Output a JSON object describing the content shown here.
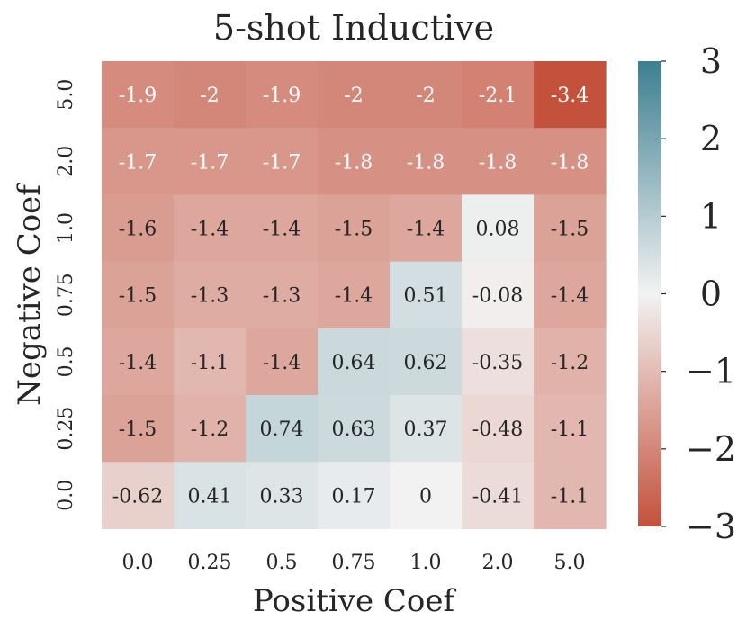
{
  "chart_data": {
    "type": "heatmap",
    "title": "5-shot Inductive",
    "xlabel": "Positive Coef",
    "ylabel": "Negative Coef",
    "x_categories": [
      "0.0",
      "0.25",
      "0.5",
      "0.75",
      "1.0",
      "2.0",
      "5.0"
    ],
    "y_categories": [
      "5.0",
      "2.0",
      "1.0",
      "0.75",
      "0.5",
      "0.25",
      "0.0"
    ],
    "values": [
      [
        -1.9,
        -2,
        -1.9,
        -2,
        -2,
        -2.1,
        -3.4
      ],
      [
        -1.7,
        -1.7,
        -1.7,
        -1.8,
        -1.8,
        -1.8,
        -1.8
      ],
      [
        -1.6,
        -1.4,
        -1.4,
        -1.5,
        -1.4,
        0.08,
        -1.5
      ],
      [
        -1.5,
        -1.3,
        -1.3,
        -1.4,
        0.51,
        -0.08,
        -1.4
      ],
      [
        -1.4,
        -1.1,
        -1.4,
        0.64,
        0.62,
        -0.35,
        -1.2
      ],
      [
        -1.5,
        -1.2,
        0.74,
        0.63,
        0.37,
        -0.48,
        -1.1
      ],
      [
        -0.62,
        0.41,
        0.33,
        0.17,
        0,
        -0.41,
        -1.1
      ]
    ],
    "colorbar": {
      "vmin": -3,
      "vmax": 3,
      "ticks": [
        3,
        2,
        1,
        0,
        -1,
        -2,
        -3
      ],
      "tick_labels": [
        "3",
        "2",
        "1",
        "0",
        "−1",
        "−2",
        "−3"
      ],
      "low_color": "#c4513b",
      "mid_color": "#f2f2f2",
      "high_color": "#3c7f91"
    }
  }
}
